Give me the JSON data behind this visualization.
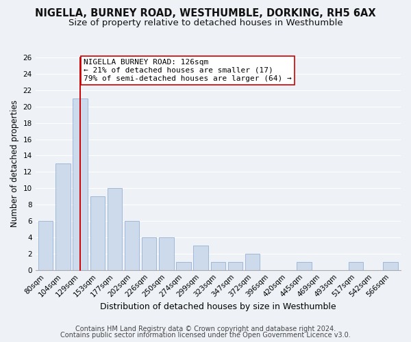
{
  "title1": "NIGELLA, BURNEY ROAD, WESTHUMBLE, DORKING, RH5 6AX",
  "title2": "Size of property relative to detached houses in Westhumble",
  "xlabel": "Distribution of detached houses by size in Westhumble",
  "ylabel": "Number of detached properties",
  "bin_labels": [
    "80sqm",
    "104sqm",
    "129sqm",
    "153sqm",
    "177sqm",
    "202sqm",
    "226sqm",
    "250sqm",
    "274sqm",
    "299sqm",
    "323sqm",
    "347sqm",
    "372sqm",
    "396sqm",
    "420sqm",
    "445sqm",
    "469sqm",
    "493sqm",
    "517sqm",
    "542sqm",
    "566sqm"
  ],
  "bar_heights": [
    6,
    13,
    21,
    9,
    10,
    6,
    4,
    4,
    1,
    3,
    1,
    1,
    2,
    0,
    0,
    1,
    0,
    0,
    1,
    0,
    1
  ],
  "bar_color": "#cddaec",
  "bar_edge_color": "#a0b8d8",
  "red_line_index": 2,
  "red_line_color": "#cc0000",
  "annotation_title": "NIGELLA BURNEY ROAD: 126sqm",
  "annotation_line1": "← 21% of detached houses are smaller (17)",
  "annotation_line2": "79% of semi-detached houses are larger (64) →",
  "annotation_box_color": "#ffffff",
  "annotation_box_edge": "#cc0000",
  "ylim": [
    0,
    26
  ],
  "yticks": [
    0,
    2,
    4,
    6,
    8,
    10,
    12,
    14,
    16,
    18,
    20,
    22,
    24,
    26
  ],
  "footer1": "Contains HM Land Registry data © Crown copyright and database right 2024.",
  "footer2": "Contains public sector information licensed under the Open Government Licence v3.0.",
  "background_color": "#eef2f7",
  "grid_color": "#ffffff",
  "title1_fontsize": 10.5,
  "title2_fontsize": 9.5,
  "xlabel_fontsize": 9,
  "ylabel_fontsize": 8.5,
  "tick_fontsize": 7.5,
  "footer_fontsize": 7,
  "ann_fontsize": 8
}
